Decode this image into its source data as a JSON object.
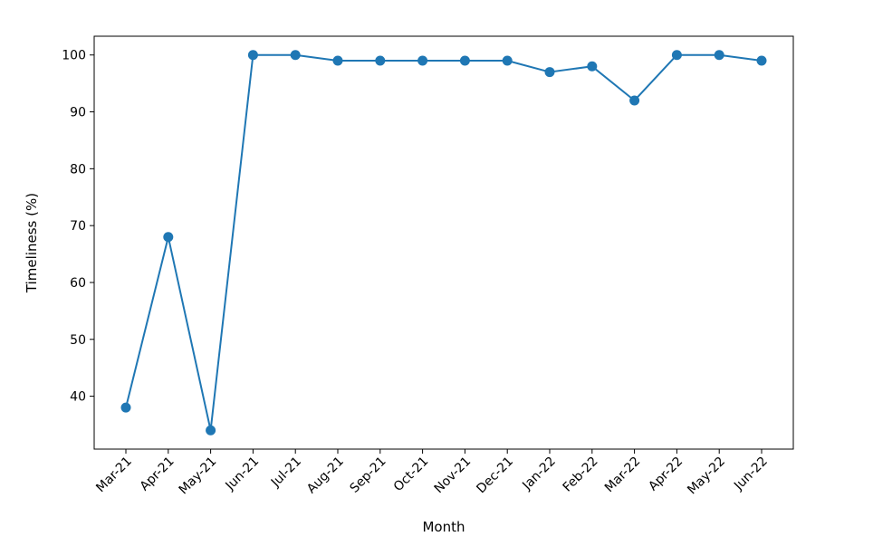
{
  "chart_data": {
    "type": "line",
    "title": "",
    "xlabel": "Month",
    "ylabel": "Timeliness (%)",
    "categories": [
      "Mar-21",
      "Apr-21",
      "May-21",
      "Jun-21",
      "Jul-21",
      "Aug-21",
      "Sep-21",
      "Oct-21",
      "Nov-21",
      "Dec-21",
      "Jan-22",
      "Feb-22",
      "Mar-22",
      "Apr-22",
      "May-22",
      "Jun-22"
    ],
    "series": [
      {
        "values": [
          38,
          68,
          34,
          100,
          100,
          99,
          99,
          99,
          99,
          99,
          97,
          98,
          92,
          100,
          100,
          99
        ]
      }
    ],
    "ylim": [
      30.7,
      103.3
    ],
    "yticks": [
      40,
      50,
      60,
      70,
      80,
      90,
      100
    ],
    "grid": false,
    "line_color": "#1f77b4",
    "marker": "circle"
  }
}
